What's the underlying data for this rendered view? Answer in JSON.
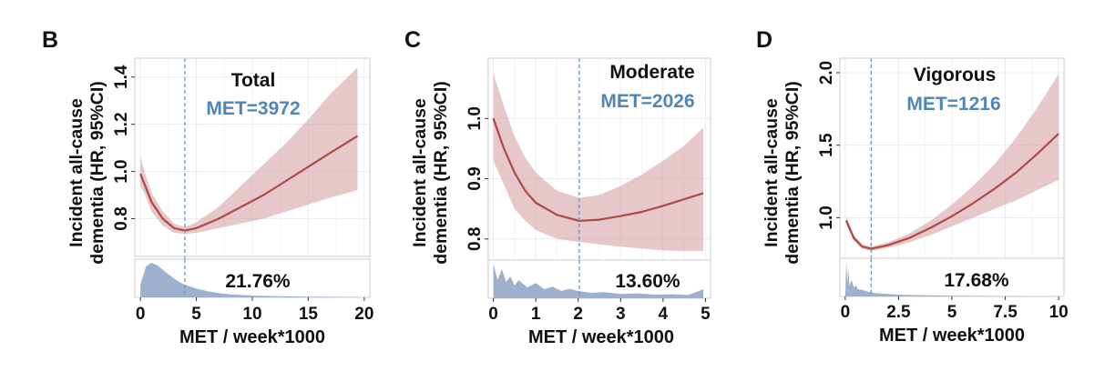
{
  "colors": {
    "curve": "#b04848",
    "band": "#d49a9e",
    "met_text": "#4f86b8",
    "vline": "#6f9cc6",
    "hist": "#9db0cd",
    "grid": "#ececec",
    "frame": "#cccccc"
  },
  "chart_data": [
    {
      "type": "line",
      "panel": "B",
      "subtitle": "Total",
      "met_label": "MET=3972",
      "nadir_x": 3.972,
      "hist_percent": "21.76%",
      "xlabel": "MET / week*1000",
      "ylabel_line1": "Incident all-cause",
      "ylabel_line2": "dementia (HR, 95%CI)",
      "xlim": [
        -0.5,
        20.5
      ],
      "ylim": [
        0.64,
        1.48
      ],
      "xticks": [
        0,
        5,
        10,
        15,
        20
      ],
      "xtick_labels": [
        "0",
        "5",
        "10",
        "15",
        "20"
      ],
      "yticks": [
        0.8,
        1.0,
        1.2,
        1.4
      ],
      "ytick_labels": [
        "0.8",
        "1.0",
        "1.2",
        "1.4"
      ],
      "series": [
        {
          "name": "HR",
          "x": [
            0,
            0.5,
            1,
            2,
            3,
            3.972,
            5,
            7,
            9,
            11,
            13,
            15,
            17,
            19.4
          ],
          "y": [
            0.99,
            0.93,
            0.87,
            0.8,
            0.76,
            0.75,
            0.76,
            0.8,
            0.85,
            0.9,
            0.96,
            1.02,
            1.08,
            1.15
          ]
        },
        {
          "name": "95% CI lower",
          "x": [
            0,
            0.5,
            1,
            2,
            3,
            3.972,
            5,
            7,
            9,
            11,
            13,
            15,
            17,
            19.4
          ],
          "y": [
            0.94,
            0.89,
            0.83,
            0.77,
            0.74,
            0.735,
            0.74,
            0.76,
            0.78,
            0.8,
            0.83,
            0.86,
            0.89,
            0.92
          ]
        },
        {
          "name": "95% CI upper",
          "x": [
            0,
            0.5,
            1,
            2,
            3,
            3.972,
            5,
            7,
            9,
            11,
            13,
            15,
            17,
            19.4
          ],
          "y": [
            1.06,
            0.98,
            0.91,
            0.83,
            0.78,
            0.765,
            0.785,
            0.85,
            0.94,
            1.03,
            1.12,
            1.22,
            1.33,
            1.44
          ]
        }
      ],
      "histogram": {
        "x": [
          0,
          0.5,
          1,
          1.5,
          2,
          2.5,
          3,
          3.5,
          4,
          5,
          6,
          7,
          8,
          10,
          12,
          15,
          19.4
        ],
        "density": [
          0.35,
          0.85,
          0.95,
          0.88,
          0.76,
          0.63,
          0.52,
          0.42,
          0.34,
          0.24,
          0.17,
          0.12,
          0.08,
          0.05,
          0.03,
          0.02,
          0.01
        ]
      }
    },
    {
      "type": "line",
      "panel": "C",
      "subtitle": "Moderate",
      "met_label": "MET=2026",
      "nadir_x": 2.026,
      "hist_percent": "13.60%",
      "xlabel": "MET / week*1000",
      "ylabel_line1": "Incident all-cause",
      "ylabel_line2": "dementia (HR, 95%CI)",
      "xlim": [
        -0.12,
        5.12
      ],
      "ylim": [
        0.765,
        1.1
      ],
      "xticks": [
        0,
        1,
        2,
        3,
        4,
        5
      ],
      "xtick_labels": [
        "0",
        "1",
        "2",
        "3",
        "4",
        "5"
      ],
      "yticks": [
        0.8,
        0.9,
        1.0
      ],
      "ytick_labels": [
        "0.8",
        "0.9",
        "1.0"
      ],
      "series": [
        {
          "name": "HR",
          "x": [
            0,
            0.25,
            0.5,
            0.75,
            1,
            1.5,
            2.026,
            2.5,
            3,
            3.5,
            4,
            4.5,
            4.95
          ],
          "y": [
            1.0,
            0.95,
            0.91,
            0.88,
            0.86,
            0.84,
            0.83,
            0.832,
            0.838,
            0.845,
            0.855,
            0.866,
            0.876
          ]
        },
        {
          "name": "95% CI lower",
          "x": [
            0,
            0.25,
            0.5,
            0.75,
            1,
            1.5,
            2.026,
            2.5,
            3,
            3.5,
            4,
            4.5,
            4.95
          ],
          "y": [
            0.93,
            0.89,
            0.85,
            0.83,
            0.815,
            0.8,
            0.795,
            0.791,
            0.787,
            0.784,
            0.781,
            0.78,
            0.78
          ]
        },
        {
          "name": "95% CI upper",
          "x": [
            0,
            0.25,
            0.5,
            0.75,
            1,
            1.5,
            2.026,
            2.5,
            3,
            3.5,
            4,
            4.5,
            4.95
          ],
          "y": [
            1.075,
            1.02,
            0.97,
            0.935,
            0.91,
            0.88,
            0.868,
            0.873,
            0.888,
            0.907,
            0.93,
            0.955,
            0.985
          ]
        }
      ],
      "histogram": {
        "x": [
          0,
          0.1,
          0.2,
          0.3,
          0.4,
          0.5,
          0.6,
          0.8,
          1.0,
          1.2,
          1.4,
          1.6,
          1.8,
          2.0,
          2.3,
          2.6,
          3.0,
          3.4,
          3.8,
          4.2,
          4.6,
          4.95
        ],
        "density": [
          0.95,
          0.5,
          0.8,
          0.45,
          0.6,
          0.35,
          0.5,
          0.3,
          0.42,
          0.25,
          0.32,
          0.2,
          0.26,
          0.2,
          0.15,
          0.17,
          0.12,
          0.13,
          0.1,
          0.11,
          0.09,
          0.25
        ]
      }
    },
    {
      "type": "line",
      "panel": "D",
      "subtitle": "Vigorous",
      "met_label": "MET=1216",
      "nadir_x": 1.216,
      "hist_percent": "17.68%",
      "xlabel": "MET / week*1000",
      "ylabel_line1": "Incident all-cause",
      "ylabel_line2": "dementia (HR, 95%CI)",
      "xlim": [
        -0.25,
        10.25
      ],
      "ylim": [
        0.72,
        2.1
      ],
      "xticks": [
        0,
        2.5,
        5,
        7.5,
        10
      ],
      "xtick_labels": [
        "0",
        "2.5",
        "5",
        "7.5",
        "10"
      ],
      "yticks": [
        1.0,
        1.5,
        2.0
      ],
      "ytick_labels": [
        "1.0",
        "1.5",
        "2.0"
      ],
      "series": [
        {
          "name": "HR",
          "x": [
            0.05,
            0.4,
            0.8,
            1.216,
            2,
            3,
            4,
            5,
            6,
            7,
            8,
            9,
            10
          ],
          "y": [
            0.98,
            0.86,
            0.8,
            0.785,
            0.81,
            0.86,
            0.93,
            1.01,
            1.1,
            1.2,
            1.31,
            1.44,
            1.58
          ]
        },
        {
          "name": "95% CI lower",
          "x": [
            0.05,
            0.4,
            0.8,
            1.216,
            2,
            3,
            4,
            5,
            6,
            7,
            8,
            9,
            10
          ],
          "y": [
            0.95,
            0.84,
            0.785,
            0.77,
            0.79,
            0.83,
            0.88,
            0.94,
            1.0,
            1.06,
            1.12,
            1.19,
            1.26
          ]
        },
        {
          "name": "95% CI upper",
          "x": [
            0.05,
            0.4,
            0.8,
            1.216,
            2,
            3,
            4,
            5,
            6,
            7,
            8,
            9,
            10
          ],
          "y": [
            1.01,
            0.88,
            0.815,
            0.8,
            0.83,
            0.89,
            0.98,
            1.09,
            1.22,
            1.37,
            1.55,
            1.76,
            1.99
          ]
        }
      ],
      "histogram": {
        "x": [
          0,
          0.05,
          0.1,
          0.15,
          0.2,
          0.3,
          0.4,
          0.5,
          0.6,
          0.8,
          1.0,
          1.3,
          1.6,
          2.0,
          2.5,
          3,
          4,
          5,
          6,
          8,
          10
        ],
        "density": [
          0.0,
          1.0,
          0.4,
          0.75,
          0.3,
          0.45,
          0.25,
          0.3,
          0.2,
          0.18,
          0.14,
          0.1,
          0.08,
          0.07,
          0.05,
          0.04,
          0.03,
          0.02,
          0.015,
          0.01,
          0.0
        ]
      }
    }
  ]
}
